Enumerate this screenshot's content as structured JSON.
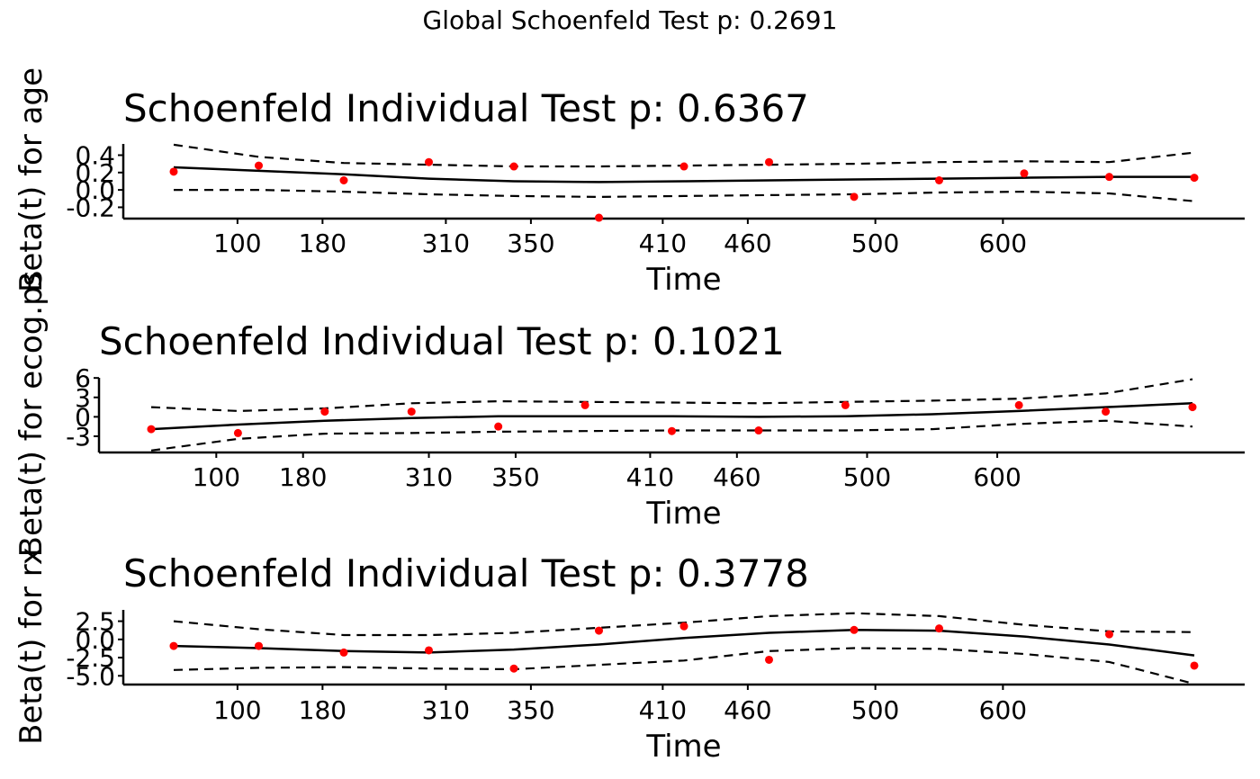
{
  "figure": {
    "title": "Global Schoenfeld Test p: 0.2691"
  },
  "colors": {
    "points": "#ff0000",
    "lines": "#000000",
    "background": "#ffffff"
  },
  "chart_data": [
    {
      "type": "scatter",
      "title": "Schoenfeld Individual Test p: 0.6367",
      "xlabel": "Time",
      "ylabel": "Beta(t) for age",
      "x_ticks": [
        "100",
        "180",
        "310",
        "350",
        "410",
        "460",
        "500",
        "600"
      ],
      "y_ticks": [
        -0.2,
        0.0,
        0.2,
        0.4
      ],
      "y_tick_labels": [
        "-0.2",
        "0.0",
        "0.2",
        "0.4"
      ],
      "ylim": [
        -0.33,
        0.55
      ],
      "n_points": 13,
      "points": [
        0.21,
        0.28,
        0.11,
        0.32,
        0.27,
        -0.32,
        0.27,
        0.32,
        -0.08,
        0.11,
        0.19,
        0.15,
        0.14
      ],
      "fit": [
        0.26,
        0.22,
        0.18,
        0.13,
        0.1,
        0.09,
        0.1,
        0.11,
        0.12,
        0.13,
        0.14,
        0.15,
        0.15
      ],
      "upper": [
        0.52,
        0.38,
        0.31,
        0.29,
        0.27,
        0.27,
        0.28,
        0.29,
        0.3,
        0.32,
        0.33,
        0.32,
        0.43
      ],
      "lower": [
        0.0,
        0.0,
        -0.02,
        -0.05,
        -0.07,
        -0.08,
        -0.07,
        -0.06,
        -0.05,
        -0.03,
        -0.02,
        -0.04,
        -0.13
      ],
      "grid": false,
      "legend": "none"
    },
    {
      "type": "scatter",
      "title": "Schoenfeld Individual Test p: 0.1021",
      "xlabel": "Time",
      "ylabel": "Beta(t) for ecog.ps",
      "x_ticks": [
        "100",
        "180",
        "310",
        "350",
        "410",
        "460",
        "500",
        "600"
      ],
      "y_ticks": [
        -3,
        0,
        3,
        6
      ],
      "y_tick_labels": [
        "-3",
        "0",
        "3",
        "6"
      ],
      "ylim": [
        -5.5,
        6.3
      ],
      "n_points": 13,
      "points": [
        -1.9,
        -2.5,
        0.8,
        0.8,
        -1.5,
        1.8,
        -2.2,
        -2.1,
        1.8,
        1.8,
        0.8,
        1.5
      ],
      "point_slots": [
        0,
        1,
        2,
        3,
        4,
        5,
        6,
        7,
        8,
        10,
        11,
        12
      ],
      "fit": [
        -1.9,
        -1.2,
        -0.6,
        -0.2,
        0.1,
        0.1,
        0.1,
        0.0,
        0.1,
        0.4,
        0.9,
        1.5,
        2.1
      ],
      "upper": [
        1.5,
        0.9,
        1.3,
        2.1,
        2.4,
        2.3,
        2.2,
        2.1,
        2.3,
        2.5,
        2.8,
        3.6,
        5.8
      ],
      "lower": [
        -5.2,
        -3.4,
        -2.6,
        -2.5,
        -2.3,
        -2.2,
        -2.1,
        -2.1,
        -2.1,
        -1.9,
        -1.1,
        -0.6,
        -1.5
      ],
      "grid": false,
      "legend": "none"
    },
    {
      "type": "scatter",
      "title": "Schoenfeld Individual Test p: 0.3778",
      "xlabel": "Time",
      "ylabel": "Beta(t) for rx",
      "x_ticks": [
        "100",
        "180",
        "310",
        "350",
        "410",
        "460",
        "500",
        "600"
      ],
      "y_ticks": [
        -5.0,
        -2.5,
        0.0,
        2.5
      ],
      "y_tick_labels": [
        "-5.0",
        "-2.5",
        "0.0",
        "2.5"
      ],
      "ylim": [
        -6.2,
        4.3
      ],
      "n_points": 13,
      "points": [
        -0.9,
        -0.9,
        -1.8,
        -1.5,
        -4.0,
        1.2,
        1.8,
        -2.8,
        1.3,
        1.5,
        0.7,
        -3.6
      ],
      "point_slots": [
        0,
        1,
        2,
        3,
        4,
        5,
        6,
        7,
        8,
        9,
        11,
        12
      ],
      "fit": [
        -0.9,
        -1.2,
        -1.6,
        -1.8,
        -1.4,
        -0.7,
        0.2,
        0.9,
        1.3,
        1.2,
        0.4,
        -0.7,
        -2.2
      ],
      "upper": [
        2.5,
        1.4,
        0.6,
        0.6,
        0.9,
        1.6,
        2.3,
        3.2,
        3.6,
        3.2,
        2.0,
        1.1,
        1.0
      ],
      "lower": [
        -4.2,
        -3.9,
        -3.8,
        -4.0,
        -4.1,
        -3.5,
        -2.9,
        -1.6,
        -1.2,
        -1.3,
        -2.0,
        -3.1,
        -6.1
      ],
      "grid": false,
      "legend": "none"
    }
  ]
}
